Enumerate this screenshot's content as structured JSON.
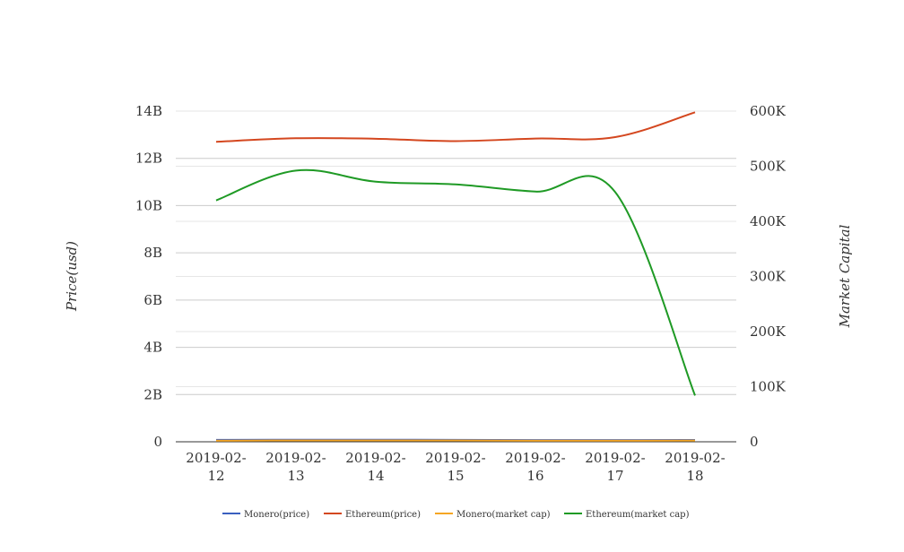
{
  "chart_data": {
    "type": "line",
    "categories": [
      "2019-02-12",
      "2019-02-13",
      "2019-02-14",
      "2019-02-15",
      "2019-02-16",
      "2019-02-17",
      "2019-02-18"
    ],
    "x_tick_labels": [
      [
        "2019-02-",
        "12"
      ],
      [
        "2019-02-",
        "13"
      ],
      [
        "2019-02-",
        "14"
      ],
      [
        "2019-02-",
        "15"
      ],
      [
        "2019-02-",
        "16"
      ],
      [
        "2019-02-",
        "17"
      ],
      [
        "2019-02-",
        "18"
      ]
    ],
    "ylabel": "Price(usd)",
    "y2label": "Market Capital",
    "ylim": [
      0,
      14000000000
    ],
    "y2lim": [
      0,
      600000
    ],
    "y_ticks": [
      {
        "value": 0,
        "label": "0"
      },
      {
        "value": 2000000000,
        "label": "2B"
      },
      {
        "value": 4000000000,
        "label": "4B"
      },
      {
        "value": 6000000000,
        "label": "6B"
      },
      {
        "value": 8000000000,
        "label": "8B"
      },
      {
        "value": 10000000000,
        "label": "10B"
      },
      {
        "value": 12000000000,
        "label": "12B"
      },
      {
        "value": 14000000000,
        "label": "14B"
      }
    ],
    "y2_ticks": [
      {
        "value": 0,
        "label": "0"
      },
      {
        "value": 100000,
        "label": "100K"
      },
      {
        "value": 200000,
        "label": "200K"
      },
      {
        "value": 300000,
        "label": "300K"
      },
      {
        "value": 400000,
        "label": "400K"
      },
      {
        "value": 500000,
        "label": "500K"
      },
      {
        "value": 600000,
        "label": "600K"
      }
    ],
    "grid": true,
    "legend_position": "bottom-center",
    "series": [
      {
        "name": "Monero(price)",
        "axis": "left",
        "color": "#3a5fbf",
        "values": [
          80000000,
          85000000,
          85000000,
          80000000,
          70000000,
          70000000,
          75000000
        ]
      },
      {
        "name": "Ethereum(price)",
        "axis": "left",
        "color": "#d4471f",
        "values": [
          12700000000,
          12850000000,
          12830000000,
          12730000000,
          12840000000,
          12900000000,
          13950000000
        ]
      },
      {
        "name": "Monero(market cap)",
        "axis": "right",
        "color": "#f5a623",
        "values": [
          2000,
          2500,
          2500,
          2400,
          2000,
          2000,
          2300
        ]
      },
      {
        "name": "Ethereum(market cap)",
        "axis": "right",
        "color": "#1f9a25",
        "values": [
          438000,
          492000,
          472000,
          467000,
          454000,
          453000,
          84000
        ]
      }
    ]
  }
}
